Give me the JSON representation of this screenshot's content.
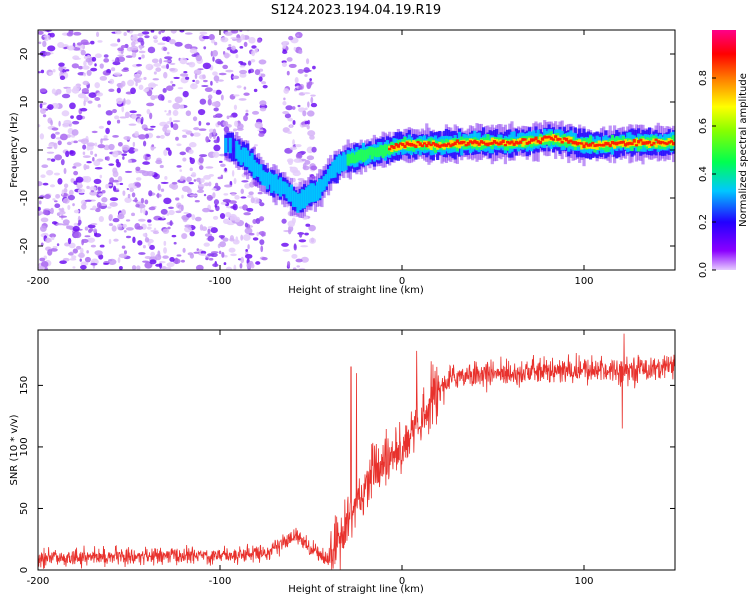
{
  "figure_title": "S124.2023.194.04.19.R19",
  "chart_data": [
    {
      "type": "heatmap",
      "title": "S124.2023.194.04.19.R19",
      "xlabel": "Height of straight line (km)",
      "ylabel": "Frequency (Hz)",
      "xlim": [
        -200,
        150
      ],
      "ylim": [
        -25,
        25
      ],
      "xticks": [
        -200,
        -100,
        0,
        100
      ],
      "xtick_labels": [
        "-200",
        "-100",
        "0",
        "100"
      ],
      "yticks": [
        -20,
        -10,
        0,
        10,
        20
      ],
      "ytick_labels": [
        "-20",
        "-10",
        "0",
        "10",
        "20"
      ],
      "colorbar": {
        "label": "Normalized spectral amplitude",
        "range": [
          0,
          1
        ],
        "ticks": [
          0.0,
          0.2,
          0.4,
          0.6,
          0.8
        ],
        "tick_labels": [
          "0.0",
          "0.2",
          "0.4",
          "0.6",
          "0.8"
        ],
        "colormap": "rainbow (violet → blue → cyan → green → yellow → red → magenta)"
      },
      "ridge": {
        "description": "Doppler peak frequency vs height (approx.)",
        "x": [
          -95,
          -85,
          -75,
          -65,
          -57,
          -50,
          -45,
          -38,
          -30,
          -20,
          -10,
          0,
          20,
          40,
          60,
          75,
          80,
          90,
          100,
          110,
          120,
          150
        ],
        "y": [
          1,
          -2,
          -6,
          -8,
          -11,
          -9,
          -8,
          -4,
          -2,
          -1,
          0,
          1,
          1,
          1.5,
          1.5,
          2,
          2.5,
          2,
          1,
          1,
          1.5,
          1.5
        ]
      },
      "noise_regions": [
        [
          -200,
          -75
        ],
        [
          -65,
          -48
        ]
      ]
    },
    {
      "type": "line",
      "xlabel": "Height of straight line (km)",
      "ylabel": "SNR (10 * v/v)",
      "xlim": [
        -200,
        150
      ],
      "ylim": [
        0,
        195
      ],
      "xticks": [
        -200,
        -100,
        0,
        100
      ],
      "xtick_labels": [
        "-200",
        "-100",
        "0",
        "100"
      ],
      "yticks": [
        0,
        50,
        100,
        150
      ],
      "ytick_labels": [
        "0",
        "50",
        "100",
        "150"
      ],
      "color": "#e8312c",
      "trend": {
        "description": "Approximate SNR envelope (noisy signal around this baseline)",
        "x": [
          -200,
          -100,
          -75,
          -65,
          -58,
          -50,
          -40,
          -35,
          -28,
          -20,
          -10,
          0,
          10,
          15,
          22,
          30,
          50,
          100,
          120,
          150
        ],
        "y": [
          10,
          12,
          14,
          22,
          28,
          18,
          8,
          20,
          45,
          70,
          90,
          100,
          115,
          135,
          150,
          158,
          160,
          162,
          163,
          165
        ]
      },
      "spikes": [
        {
          "x": -28,
          "y": 165
        },
        {
          "x": -25,
          "y": 160
        },
        {
          "x": 8,
          "y": 178
        },
        {
          "x": 122,
          "y": 192
        },
        {
          "x": 121,
          "y": 115
        }
      ],
      "noise_amplitude": 8
    }
  ]
}
